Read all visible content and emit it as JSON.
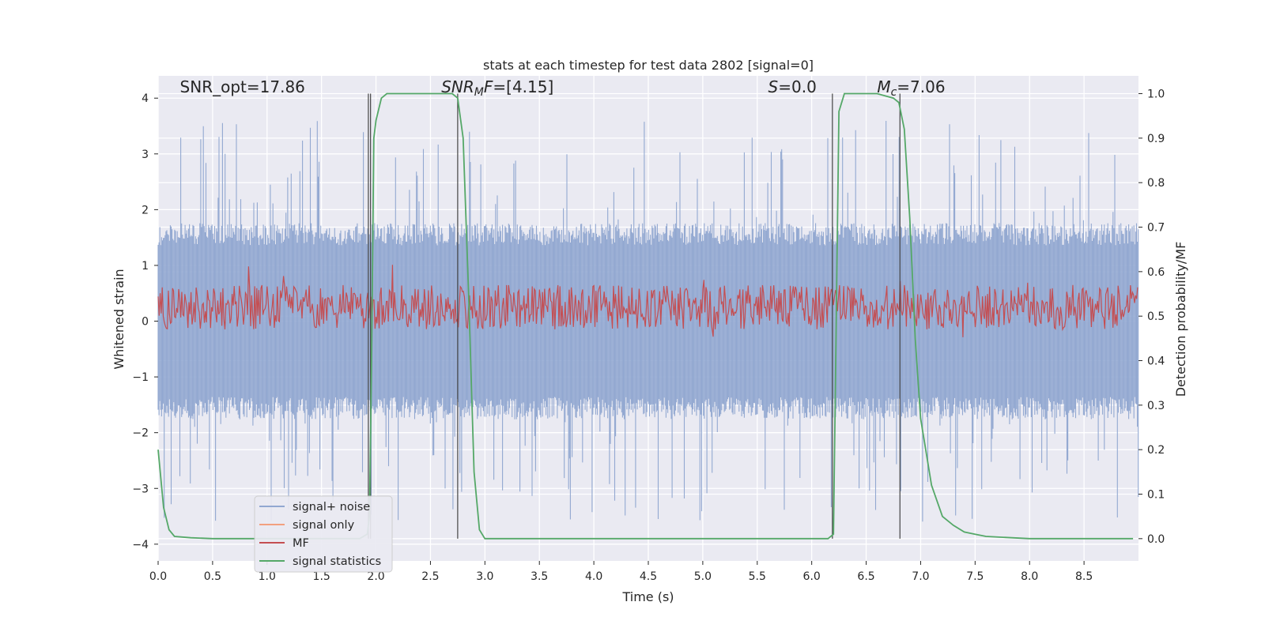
{
  "chart_data": {
    "type": "line",
    "title": "stats at each timestep for test data 2802 [signal=0]",
    "xlabel": "Time (s)",
    "ylabel_left": "Whitened strain",
    "ylabel_right": "Detection probability/MF",
    "xlim": [
      0.0,
      9.0
    ],
    "ylim_left": [
      -4.3,
      4.4
    ],
    "ylim_right": [
      -0.05,
      1.04
    ],
    "xticks": [
      "0.0",
      "0.5",
      "1.0",
      "1.5",
      "2.0",
      "2.5",
      "3.0",
      "3.5",
      "4.0",
      "4.5",
      "5.0",
      "5.5",
      "6.0",
      "6.5",
      "7.0",
      "7.5",
      "8.0",
      "8.5"
    ],
    "yticks_left": [
      "−4",
      "−3",
      "−2",
      "−1",
      "0",
      "1",
      "2",
      "3",
      "4"
    ],
    "yticks_right": [
      "0.0",
      "0.1",
      "0.2",
      "0.3",
      "0.4",
      "0.5",
      "0.6",
      "0.7",
      "0.8",
      "0.9",
      "1.0"
    ],
    "grid": true,
    "legend_position": "lower-left",
    "annotations": [
      {
        "text": "SNR_opt=17.86",
        "x": 0.2,
        "y": 4.1
      },
      {
        "text": "SNR_MF=[4.15]",
        "x": 2.6,
        "y": 4.1
      },
      {
        "text": "S=0.0",
        "x": 5.6,
        "y": 4.1
      },
      {
        "text": "M_c=7.06",
        "x": 6.6,
        "y": 4.1
      }
    ],
    "vertical_lines": [
      {
        "x": 1.93,
        "ymin": 0.0,
        "ymax": 1.0
      },
      {
        "x": 1.95,
        "ymin": 0.0,
        "ymax": 1.0
      },
      {
        "x": 2.75,
        "ymin": 0.0,
        "ymax": 1.0
      },
      {
        "x": 6.19,
        "ymin": 0.0,
        "ymax": 1.0
      },
      {
        "x": 6.81,
        "ymin": 0.0,
        "ymax": 1.0
      }
    ],
    "series": [
      {
        "name": "signal+ noise",
        "axis": "left",
        "color": "#92a8d1",
        "style": "noise",
        "amplitude_typical": 1.6,
        "amplitude_max": 3.6
      },
      {
        "name": "signal only",
        "axis": "left",
        "color": "#f2a07f",
        "values": []
      },
      {
        "name": "MF",
        "axis": "right",
        "color": "#c44e52",
        "style": "noise",
        "center": 0.52,
        "spread": 0.05
      },
      {
        "name": "signal statistics",
        "axis": "right",
        "color": "#55a868",
        "x": [
          0.0,
          0.05,
          0.1,
          0.15,
          0.3,
          0.5,
          1.0,
          1.5,
          1.85,
          1.92,
          1.94,
          1.96,
          1.98,
          2.0,
          2.05,
          2.1,
          2.2,
          2.5,
          2.7,
          2.75,
          2.8,
          2.85,
          2.9,
          2.95,
          3.0,
          4.0,
          5.0,
          6.0,
          6.15,
          6.2,
          6.25,
          6.3,
          6.4,
          6.6,
          6.75,
          6.8,
          6.85,
          6.9,
          6.95,
          7.0,
          7.1,
          7.2,
          7.3,
          7.4,
          7.5,
          7.6,
          8.0,
          8.95
        ],
        "values": [
          0.2,
          0.07,
          0.02,
          0.005,
          0.002,
          0.0,
          0.0,
          0.0,
          0.0,
          0.01,
          0.05,
          0.4,
          0.9,
          0.94,
          0.99,
          1.0,
          1.0,
          1.0,
          1.0,
          0.99,
          0.9,
          0.55,
          0.15,
          0.02,
          0.0,
          0.0,
          0.0,
          0.0,
          0.0,
          0.01,
          0.96,
          1.0,
          1.0,
          1.0,
          0.99,
          0.98,
          0.92,
          0.72,
          0.45,
          0.27,
          0.12,
          0.05,
          0.03,
          0.015,
          0.01,
          0.005,
          0.0,
          0.0
        ]
      }
    ]
  }
}
